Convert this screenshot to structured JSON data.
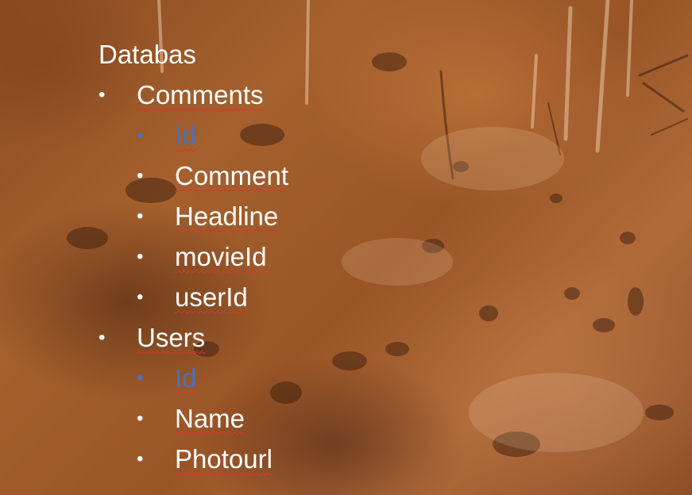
{
  "slide": {
    "title": "Databas",
    "accent_color": "#4472c4",
    "text_color": "#ffffff",
    "bullet_glyph": "•",
    "tables": [
      {
        "name": "Comments",
        "fields": [
          {
            "label": "Id",
            "key": true
          },
          {
            "label": "Comment",
            "key": false
          },
          {
            "label": "Headline",
            "key": false
          },
          {
            "label": "movieId",
            "key": false
          },
          {
            "label": "userId",
            "key": false
          }
        ]
      },
      {
        "name": "Users",
        "fields": [
          {
            "label": "Id",
            "key": true
          },
          {
            "label": "Name",
            "key": false
          },
          {
            "label": "Photourl",
            "key": false
          }
        ]
      }
    ]
  }
}
